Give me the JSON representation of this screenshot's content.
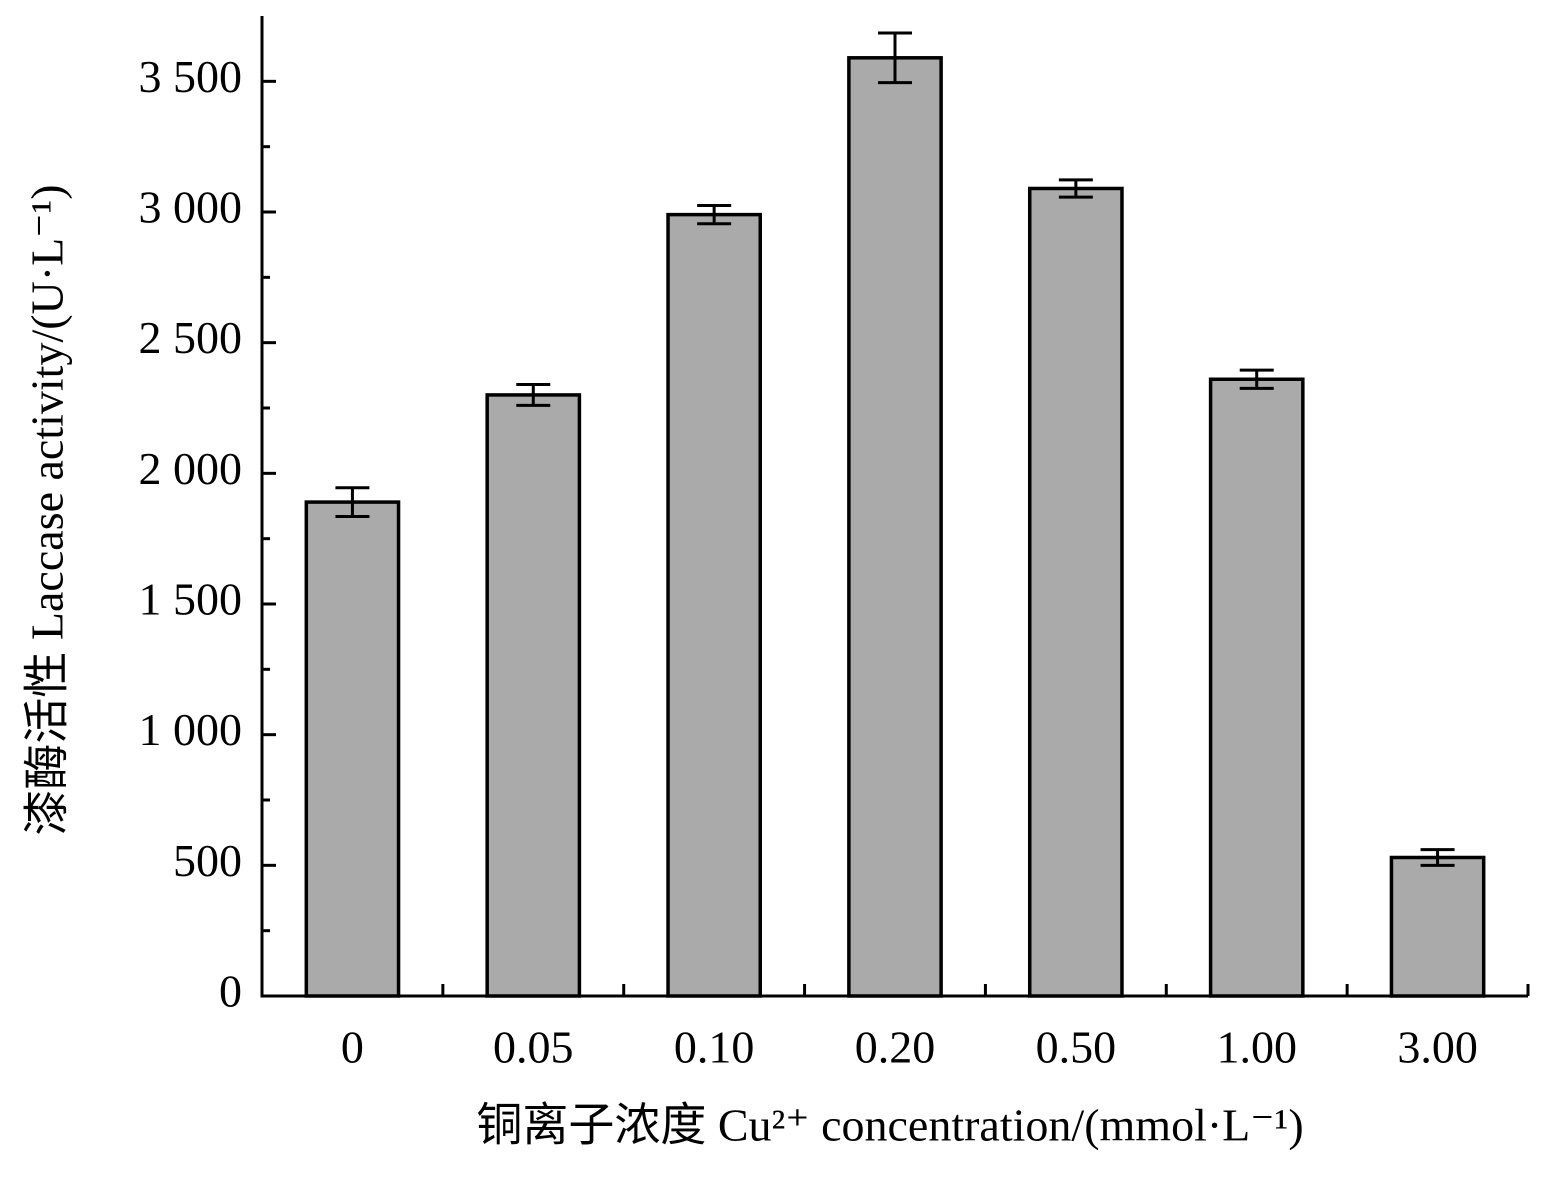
{
  "chart_data": {
    "type": "bar",
    "xlabel": "铜离子浓度 Cu²⁺ concentration/(mmol·L⁻¹)",
    "ylabel": "漆酶活性 Laccase activity/(U·L⁻¹)",
    "categories": [
      "0",
      "0.05",
      "0.10",
      "0.20",
      "0.50",
      "1.00",
      "3.00"
    ],
    "series": [
      {
        "color": "#aaaaaa",
        "values": [
          1890,
          2300,
          2990,
          3590,
          3090,
          2360,
          530
        ],
        "errors": [
          55,
          40,
          35,
          95,
          33,
          35,
          30
        ]
      }
    ],
    "ylim": [
      0,
      3750
    ],
    "yticks": [
      0,
      500,
      {
        "value": 1000,
        "label": "1 000"
      },
      {
        "value": 1500,
        "label": "1 500"
      },
      {
        "value": 2000,
        "label": "2 000"
      },
      {
        "value": 2500,
        "label": "2 500"
      },
      {
        "value": 3000,
        "label": "3 000"
      },
      {
        "value": 3500,
        "label": "3 500"
      }
    ]
  }
}
